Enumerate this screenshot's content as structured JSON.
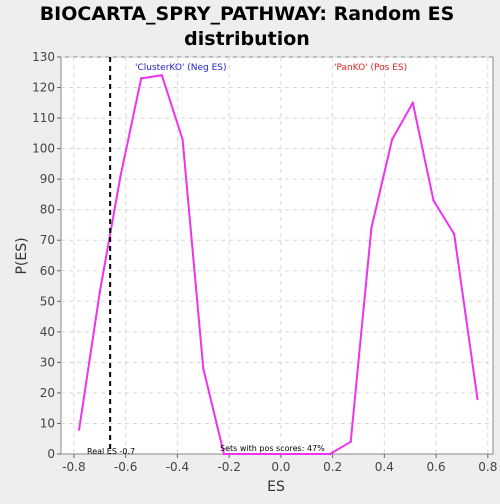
{
  "chart_data": {
    "type": "line",
    "title": "BIOCARTA_SPRY_PATHWAY: Random ES distribution",
    "title_lines": [
      "BIOCARTA_SPRY_PATHWAY: Random ES",
      "distribution"
    ],
    "xlabel": "ES",
    "ylabel": "P(ES)",
    "xlim": [
      -0.85,
      0.82
    ],
    "ylim": [
      0,
      130
    ],
    "x_ticks": [
      -0.8,
      -0.6,
      -0.4,
      -0.2,
      0.0,
      0.2,
      0.4,
      0.6,
      0.8
    ],
    "x_tick_labels": [
      "-0.8",
      "-0.6",
      "-0.4",
      "-0.2",
      "0.0",
      "0.2",
      "0.4",
      "0.6",
      "0.8"
    ],
    "y_ticks": [
      0,
      10,
      20,
      30,
      40,
      50,
      60,
      70,
      80,
      90,
      100,
      110,
      120,
      130
    ],
    "y_tick_labels": [
      "0",
      "10",
      "20",
      "30",
      "40",
      "50",
      "60",
      "70",
      "80",
      "90",
      "100",
      "110",
      "120",
      "130"
    ],
    "grid": true,
    "series": [
      {
        "color": "#ee33ee",
        "x": [
          -0.78,
          -0.7,
          -0.62,
          -0.54,
          -0.46,
          -0.38,
          -0.3,
          -0.22,
          -0.14,
          -0.06,
          0.02,
          0.1,
          0.19,
          0.27,
          0.35,
          0.43,
          0.51,
          0.59,
          0.67,
          0.76
        ],
        "y": [
          8,
          53,
          91,
          123,
          124,
          103,
          28,
          0,
          0,
          0,
          0,
          0,
          0,
          4,
          74,
          103,
          115,
          83,
          72,
          18
        ]
      }
    ],
    "reference_line": {
      "x": -0.66,
      "style": "dashed",
      "color": "#000000"
    },
    "annotations": {
      "neg_label": "'ClusterKO' (Neg ES)",
      "neg_color": "#2222cc",
      "pos_label": "'PanKO' (Pos ES)",
      "pos_color": "#dd2222",
      "real_es": "Real ES -0.7",
      "pos_scores": "Sets with pos scores: 47%"
    }
  }
}
